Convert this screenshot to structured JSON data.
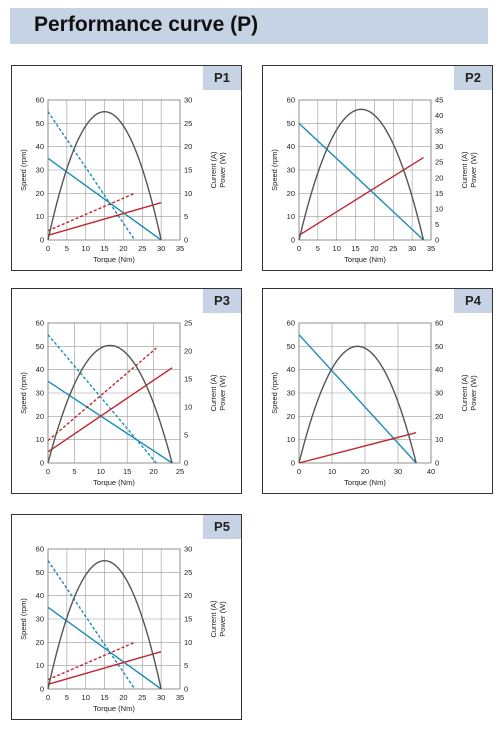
{
  "page_title": "Performance curve (P)",
  "colors": {
    "header_bg": "#c5d3e4",
    "speed": "#1a8fb3",
    "current": "#c0262f",
    "power": "#555555",
    "grid": "#9a9a9a"
  },
  "chart_data": [
    {
      "id": "P1",
      "label": "P1",
      "type": "line",
      "xlabel": "Torque (Nm)",
      "ylabel_left": "Speed (rpm)",
      "ylabel_right_1": "Current (A)",
      "ylabel_right_2": "Power (W)",
      "xlim": [
        0,
        35
      ],
      "ylim_left": [
        0,
        60
      ],
      "ylim_right": [
        0,
        30
      ],
      "x_ticks": [
        "0",
        "5",
        "10",
        "15",
        "20",
        "25",
        "30",
        "35"
      ],
      "y_left_ticks": [
        "0",
        "10",
        "20",
        "30",
        "40",
        "50",
        "60"
      ],
      "y_right_ticks": [
        "0",
        "5",
        "10",
        "15",
        "20",
        "25",
        "30"
      ],
      "series": [
        {
          "axis": "left",
          "style": "solid",
          "color": "speed",
          "points": [
            [
              0,
              35
            ],
            [
              30,
              0
            ]
          ]
        },
        {
          "axis": "left",
          "style": "dashed",
          "color": "speed",
          "points": [
            [
              0,
              55
            ],
            [
              23,
              0
            ]
          ]
        },
        {
          "axis": "right",
          "style": "solid",
          "color": "current",
          "points": [
            [
              0,
              1
            ],
            [
              30,
              8
            ]
          ]
        },
        {
          "axis": "right",
          "style": "dashed",
          "color": "current",
          "points": [
            [
              0,
              2
            ],
            [
              23,
              10
            ]
          ]
        },
        {
          "axis": "right",
          "style": "solid",
          "color": "power",
          "shape": "parabola",
          "points": [
            [
              0,
              0
            ],
            [
              15,
              27.5
            ],
            [
              30,
              0
            ]
          ]
        }
      ]
    },
    {
      "id": "P2",
      "label": "P2",
      "type": "line",
      "xlabel": "Torque (Nm)",
      "ylabel_left": "Speed (rpm)",
      "ylabel_right_1": "Current (A)",
      "ylabel_right_2": "Power (W)",
      "xlim": [
        0,
        35
      ],
      "ylim_left": [
        0,
        60
      ],
      "ylim_right": [
        0,
        45
      ],
      "x_ticks": [
        "0",
        "5",
        "10",
        "15",
        "20",
        "25",
        "30",
        "35"
      ],
      "y_left_ticks": [
        "0",
        "10",
        "20",
        "30",
        "40",
        "50",
        "60"
      ],
      "y_right_ticks": [
        "0",
        "5",
        "10",
        "15",
        "20",
        "25",
        "30",
        "35",
        "40",
        "45"
      ],
      "series": [
        {
          "axis": "left",
          "style": "solid",
          "color": "speed",
          "points": [
            [
              0,
              50
            ],
            [
              33,
              0
            ]
          ]
        },
        {
          "axis": "right",
          "style": "solid",
          "color": "current",
          "points": [
            [
              0,
              1.5
            ],
            [
              33,
              26.5
            ]
          ]
        },
        {
          "axis": "right",
          "style": "solid",
          "color": "power",
          "shape": "parabola",
          "points": [
            [
              0,
              0
            ],
            [
              16.5,
              42
            ],
            [
              33,
              0
            ]
          ]
        }
      ]
    },
    {
      "id": "P3",
      "label": "P3",
      "type": "line",
      "xlabel": "Torque (Nm)",
      "ylabel_left": "Speed (rpm)",
      "ylabel_right_1": "Current (A)",
      "ylabel_right_2": "Power (W)",
      "xlim": [
        0,
        25
      ],
      "ylim_left": [
        0,
        60
      ],
      "ylim_right": [
        0,
        25
      ],
      "x_ticks": [
        "0",
        "5",
        "10",
        "15",
        "20",
        "25"
      ],
      "y_left_ticks": [
        "0",
        "10",
        "20",
        "30",
        "40",
        "50",
        "60"
      ],
      "y_right_ticks": [
        "0",
        "5",
        "10",
        "15",
        "20",
        "25"
      ],
      "series": [
        {
          "axis": "left",
          "style": "solid",
          "color": "speed",
          "points": [
            [
              0,
              35
            ],
            [
              23.5,
              0
            ]
          ]
        },
        {
          "axis": "left",
          "style": "dashed",
          "color": "speed",
          "points": [
            [
              0,
              55
            ],
            [
              20.5,
              0
            ]
          ]
        },
        {
          "axis": "right",
          "style": "solid",
          "color": "current",
          "points": [
            [
              0,
              2
            ],
            [
              23.5,
              17
            ]
          ]
        },
        {
          "axis": "right",
          "style": "dashed",
          "color": "current",
          "points": [
            [
              0,
              4
            ],
            [
              20.5,
              20.5
            ]
          ]
        },
        {
          "axis": "right",
          "style": "solid",
          "color": "power",
          "shape": "parabola",
          "points": [
            [
              0,
              0
            ],
            [
              11.75,
              21
            ],
            [
              23.5,
              0
            ]
          ]
        }
      ]
    },
    {
      "id": "P4",
      "label": "P4",
      "type": "line",
      "xlabel": "Torque (Nm)",
      "ylabel_left": "Speed (rpm)",
      "ylabel_right_1": "Current (A)",
      "ylabel_right_2": "Power (W)",
      "xlim": [
        0,
        40
      ],
      "ylim_left": [
        0,
        60
      ],
      "ylim_right": [
        0,
        60
      ],
      "x_ticks": [
        "0",
        "10",
        "20",
        "30",
        "40"
      ],
      "y_left_ticks": [
        "0",
        "10",
        "20",
        "30",
        "40",
        "50",
        "60"
      ],
      "y_right_ticks": [
        "0",
        "10",
        "20",
        "30",
        "40",
        "50",
        "60"
      ],
      "series": [
        {
          "axis": "left",
          "style": "solid",
          "color": "speed",
          "points": [
            [
              0,
              55
            ],
            [
              35.5,
              0
            ]
          ]
        },
        {
          "axis": "right",
          "style": "solid",
          "color": "current",
          "points": [
            [
              0,
              0
            ],
            [
              35.5,
              13
            ]
          ]
        },
        {
          "axis": "right",
          "style": "solid",
          "color": "power",
          "shape": "parabola",
          "points": [
            [
              0,
              0
            ],
            [
              17.75,
              50
            ],
            [
              35.5,
              0
            ]
          ]
        }
      ]
    },
    {
      "id": "P5",
      "label": "P5",
      "type": "line",
      "xlabel": "Torque (Nm)",
      "ylabel_left": "Speed (rpm)",
      "ylabel_right_1": "Current (A)",
      "ylabel_right_2": "Power (W)",
      "xlim": [
        0,
        35
      ],
      "ylim_left": [
        0,
        60
      ],
      "ylim_right": [
        0,
        30
      ],
      "x_ticks": [
        "0",
        "5",
        "10",
        "15",
        "20",
        "25",
        "30",
        "35"
      ],
      "y_left_ticks": [
        "0",
        "10",
        "20",
        "30",
        "40",
        "50",
        "60"
      ],
      "y_right_ticks": [
        "0",
        "5",
        "10",
        "15",
        "20",
        "25",
        "30"
      ],
      "series": [
        {
          "axis": "left",
          "style": "solid",
          "color": "speed",
          "points": [
            [
              0,
              35
            ],
            [
              30,
              0
            ]
          ]
        },
        {
          "axis": "left",
          "style": "dashed",
          "color": "speed",
          "points": [
            [
              0,
              55
            ],
            [
              23,
              0
            ]
          ]
        },
        {
          "axis": "right",
          "style": "solid",
          "color": "current",
          "points": [
            [
              0,
              1
            ],
            [
              30,
              8
            ]
          ]
        },
        {
          "axis": "right",
          "style": "dashed",
          "color": "current",
          "points": [
            [
              0,
              2
            ],
            [
              23,
              10
            ]
          ]
        },
        {
          "axis": "right",
          "style": "solid",
          "color": "power",
          "shape": "parabola",
          "points": [
            [
              0,
              0
            ],
            [
              15,
              27.5
            ],
            [
              30,
              0
            ]
          ]
        }
      ]
    }
  ]
}
